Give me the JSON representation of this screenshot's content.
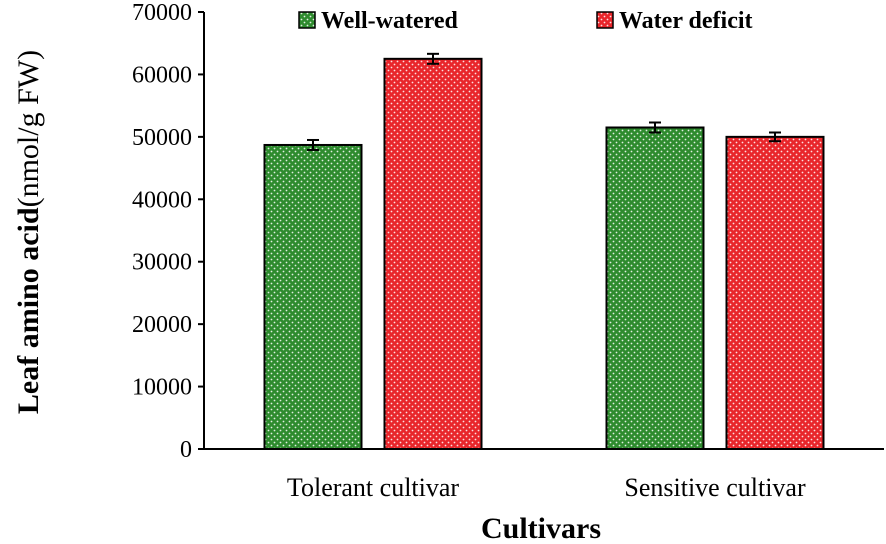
{
  "chart_data": {
    "type": "bar",
    "title": "",
    "categories": [
      "Tolerant cultivar",
      "Sensitive cultivar"
    ],
    "series": [
      {
        "name": "Well-watered",
        "values": [
          48700,
          51500
        ],
        "errors": [
          800,
          800
        ],
        "color": "#2e8b2e"
      },
      {
        "name": "Water deficit",
        "values": [
          62500,
          50000
        ],
        "errors": [
          800,
          700
        ],
        "color": "#e8262b"
      }
    ],
    "xlabel": "Cultivars",
    "ylabel_bold": "Leaf amino acid",
    "ylabel_rest": "(nmol/g FW)",
    "ylim": [
      0,
      70000
    ],
    "yticks": [
      0,
      10000,
      20000,
      30000,
      40000,
      50000,
      60000,
      70000
    ],
    "ytick_labels": [
      "0",
      "10000",
      "20000",
      "30000",
      "40000",
      "50000",
      "60000",
      "70000"
    ],
    "grid": false,
    "legend_position": "top"
  }
}
